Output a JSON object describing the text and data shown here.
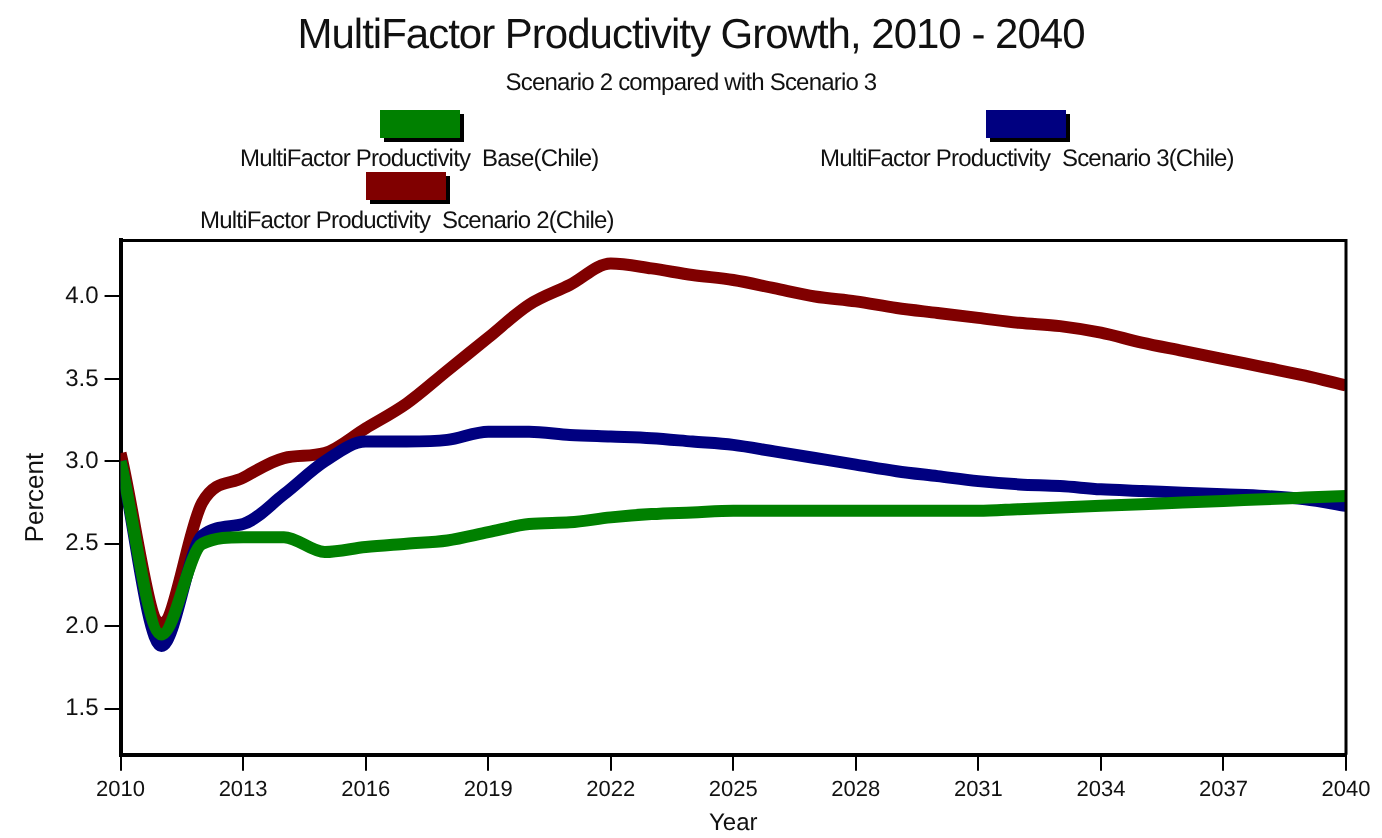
{
  "chart_data": {
    "type": "line",
    "title": "MultiFactor Productivity Growth, 2010 - 2040",
    "subtitle": "Scenario 2 compared with Scenario 3",
    "xlabel": "Year",
    "ylabel": "Percent",
    "x": [
      2010,
      2011,
      2012,
      2013,
      2014,
      2015,
      2016,
      2017,
      2018,
      2019,
      2020,
      2021,
      2022,
      2023,
      2024,
      2025,
      2026,
      2027,
      2028,
      2029,
      2030,
      2031,
      2032,
      2033,
      2034,
      2035,
      2036,
      2037,
      2038,
      2039,
      2040
    ],
    "series": [
      {
        "name": "MultiFactor Productivity  Base(Chile)",
        "color": "#008000",
        "values": [
          3.0,
          1.95,
          2.5,
          2.54,
          2.54,
          2.45,
          2.48,
          2.5,
          2.52,
          2.57,
          2.62,
          2.63,
          2.66,
          2.68,
          2.69,
          2.7,
          2.7,
          2.7,
          2.7,
          2.7,
          2.7,
          2.7,
          2.71,
          2.72,
          2.73,
          2.74,
          2.75,
          2.76,
          2.77,
          2.78,
          2.79
        ]
      },
      {
        "name": "MultiFactor Productivity  Scenario 3(Chile)",
        "color": "#000080",
        "values": [
          3.0,
          1.88,
          2.55,
          2.62,
          2.8,
          3.0,
          3.12,
          3.12,
          3.13,
          3.18,
          3.18,
          3.16,
          3.15,
          3.14,
          3.12,
          3.1,
          3.06,
          3.02,
          2.98,
          2.94,
          2.91,
          2.88,
          2.86,
          2.85,
          2.83,
          2.82,
          2.81,
          2.8,
          2.79,
          2.77,
          2.73
        ]
      },
      {
        "name": "MultiFactor Productivity  Scenario 2(Chile)",
        "color": "#800000",
        "values": [
          3.05,
          2.02,
          2.75,
          2.9,
          3.02,
          3.05,
          3.2,
          3.35,
          3.55,
          3.75,
          3.95,
          4.07,
          4.2,
          4.17,
          4.13,
          4.1,
          4.05,
          4.0,
          3.97,
          3.93,
          3.9,
          3.87,
          3.84,
          3.82,
          3.78,
          3.72,
          3.67,
          3.62,
          3.57,
          3.52,
          3.46
        ]
      }
    ],
    "xlim": [
      2010,
      2040
    ],
    "xticks": [
      2010,
      2013,
      2016,
      2019,
      2022,
      2025,
      2028,
      2031,
      2034,
      2037,
      2040
    ],
    "ylim": [
      1.22,
      4.34
    ],
    "yticks": [
      {
        "value": 1.5,
        "label": "1.5"
      },
      {
        "value": 2,
        "label": "2.0"
      },
      {
        "value": 2.5,
        "label": "2.5"
      },
      {
        "value": 3,
        "label": "3.0"
      },
      {
        "value": 3.5,
        "label": "3.5"
      },
      {
        "value": 4,
        "label": "4.0"
      }
    ],
    "grid": false,
    "legend": "top",
    "marker": "none",
    "line_style": "solid"
  }
}
